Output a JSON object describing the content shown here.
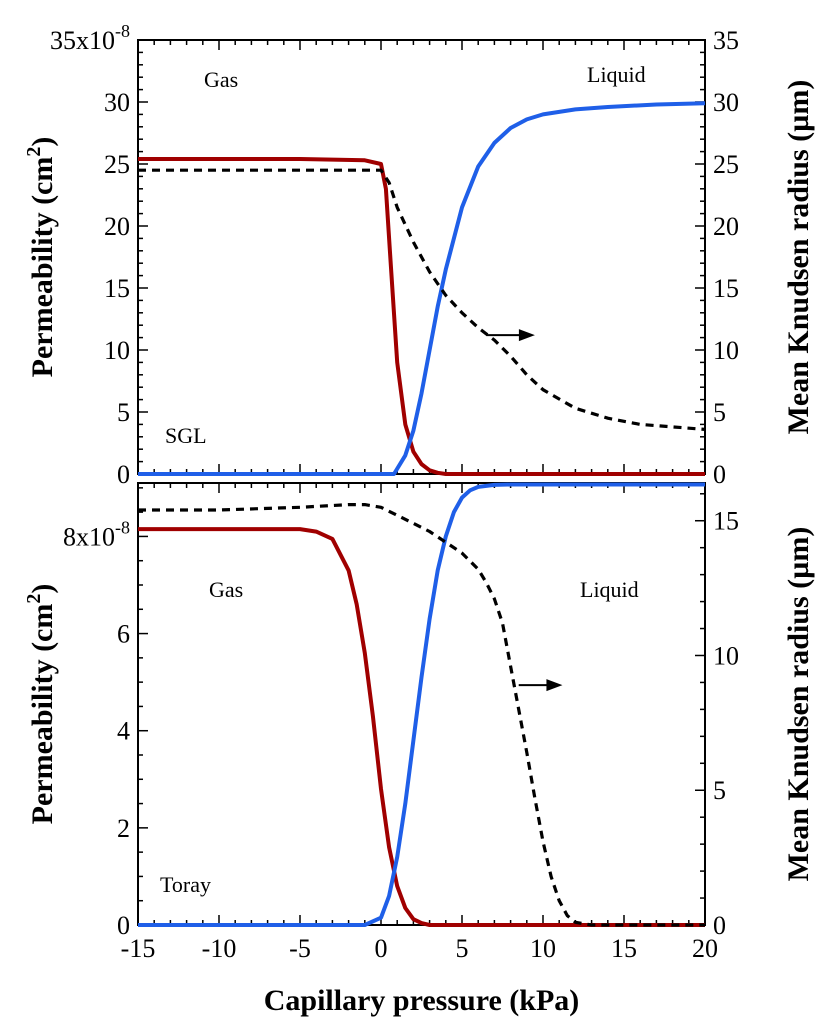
{
  "chart_data": [
    {
      "type": "line",
      "panel": "top",
      "xlabel": "Capillary pressure (kPa)",
      "ylabel": "Permeability (cm",
      "ylabel_sup": "2",
      "ylabel_close": ")",
      "ylabel_right": "Mean Knudsen radius (µm)",
      "xlim": [
        -15,
        20
      ],
      "ylim_left": [
        0,
        35
      ],
      "ylim_right": [
        0,
        35
      ],
      "left_tick_values": [
        0,
        5,
        10,
        15,
        20,
        25,
        30
      ],
      "left_top_tick_label": "35x10",
      "left_top_tick_exp": "-8",
      "right_ticks": [
        "0",
        "5",
        "10",
        "15",
        "20",
        "25",
        "30",
        "35"
      ],
      "right_tick_values": [
        0,
        5,
        10,
        15,
        20,
        25,
        30,
        35
      ],
      "annotations": {
        "gas": "Gas",
        "liquid": "Liquid",
        "material": "SGL"
      },
      "series": [
        {
          "color": "#a00000",
          "axis": "left",
          "style": "solid",
          "x": [
            -15,
            -10,
            -5,
            -1,
            0,
            0.3,
            0.6,
            1.0,
            1.5,
            2.0,
            2.5,
            3.0,
            3.5,
            4.0,
            5,
            10,
            20
          ],
          "y": [
            25.4,
            25.4,
            25.4,
            25.3,
            25.0,
            23.0,
            17.0,
            9.0,
            4.0,
            1.8,
            0.8,
            0.3,
            0.1,
            0.0,
            0.0,
            0.0,
            0.0
          ]
        },
        {
          "color": "#1f5fe8",
          "axis": "left",
          "style": "solid",
          "x": [
            -15,
            0,
            0.8,
            1.5,
            2.0,
            2.5,
            3.0,
            3.5,
            4.0,
            5.0,
            6.0,
            7.0,
            8.0,
            9.0,
            10,
            12,
            14,
            17,
            20
          ],
          "y": [
            0,
            0,
            0,
            1.5,
            3.5,
            6.5,
            10.0,
            13.5,
            16.5,
            21.5,
            24.8,
            26.7,
            27.9,
            28.6,
            29.0,
            29.4,
            29.6,
            29.8,
            29.9
          ]
        },
        {
          "color": "#000000",
          "axis": "right",
          "style": "dashed",
          "x": [
            -15,
            -5,
            0,
            0.5,
            1.0,
            2.0,
            3.0,
            4.0,
            5.0,
            6.0,
            7.0,
            8.0,
            9.0,
            10,
            12,
            14,
            16,
            18,
            20
          ],
          "y": [
            24.5,
            24.5,
            24.5,
            23.5,
            21.5,
            18.7,
            16.3,
            14.4,
            13.0,
            11.8,
            10.8,
            9.5,
            8.0,
            6.8,
            5.3,
            4.5,
            4.0,
            3.8,
            3.6
          ]
        }
      ],
      "arrow": {
        "x0": 6.5,
        "x1": 9.5,
        "y": 11.2
      }
    },
    {
      "type": "line",
      "panel": "bottom",
      "xlabel": "Capillary pressure (kPa)",
      "ylabel": "Permeability (cm",
      "ylabel_sup": "2",
      "ylabel_close": ")",
      "ylabel_right": "Mean Knudsen radius (µm)",
      "xlim": [
        -15,
        20
      ],
      "xticks": [
        "-15",
        "-10",
        "-5",
        "0",
        "5",
        "10",
        "15",
        "20"
      ],
      "x_tick_values": [
        -15,
        -10,
        -5,
        0,
        5,
        10,
        15,
        20
      ],
      "ylim_left": [
        0,
        9.1
      ],
      "ylim_right": [
        0,
        16.4
      ],
      "left_tick_values": [
        0,
        2,
        4,
        6
      ],
      "left_top_tick_label": "8x10",
      "left_top_tick_exp": "-8",
      "left_top_tick_value": 8,
      "right_ticks": [
        "0",
        "5",
        "10",
        "15"
      ],
      "right_tick_values": [
        0,
        5,
        10,
        15
      ],
      "annotations": {
        "gas": "Gas",
        "liquid": "Liquid",
        "material": "Toray"
      },
      "series": [
        {
          "color": "#a00000",
          "axis": "left",
          "style": "solid",
          "x": [
            -15,
            -5,
            -4,
            -3,
            -2,
            -1.5,
            -1,
            -0.5,
            0,
            0.5,
            1.0,
            1.5,
            2.0,
            2.5,
            3.0,
            4.0,
            5,
            20
          ],
          "y": [
            8.15,
            8.15,
            8.1,
            7.95,
            7.3,
            6.6,
            5.6,
            4.3,
            2.8,
            1.6,
            0.8,
            0.35,
            0.12,
            0.04,
            0.0,
            0.0,
            0.0,
            0.0
          ]
        },
        {
          "color": "#1f5fe8",
          "axis": "left",
          "style": "solid",
          "x": [
            -15,
            -1,
            0,
            0.5,
            1.0,
            1.5,
            2.0,
            2.5,
            3.0,
            3.5,
            4.0,
            4.5,
            5.0,
            5.5,
            6.0,
            7.0,
            8.0,
            10,
            20
          ],
          "y": [
            0,
            0,
            0.15,
            0.6,
            1.4,
            2.5,
            3.8,
            5.1,
            6.3,
            7.3,
            8.0,
            8.5,
            8.8,
            8.95,
            9.02,
            9.06,
            9.07,
            9.07,
            9.07
          ]
        },
        {
          "color": "#000000",
          "axis": "right",
          "style": "dashed",
          "x": [
            -15,
            -10,
            -5,
            -2,
            -1,
            0,
            1,
            2,
            3,
            4,
            5,
            6,
            6.5,
            7,
            7.5,
            8,
            8.5,
            9,
            9.5,
            10,
            10.5,
            11,
            11.5,
            12,
            13,
            14,
            20
          ],
          "y": [
            15.4,
            15.4,
            15.5,
            15.6,
            15.6,
            15.5,
            15.2,
            14.9,
            14.6,
            14.2,
            13.8,
            13.2,
            12.7,
            12.1,
            11.2,
            9.6,
            8.0,
            6.4,
            4.7,
            3.1,
            1.8,
            0.9,
            0.35,
            0.1,
            0,
            0,
            0
          ]
        }
      ],
      "arrow": {
        "x0": 8.5,
        "x1": 11.2,
        "y": 8.9
      }
    }
  ]
}
